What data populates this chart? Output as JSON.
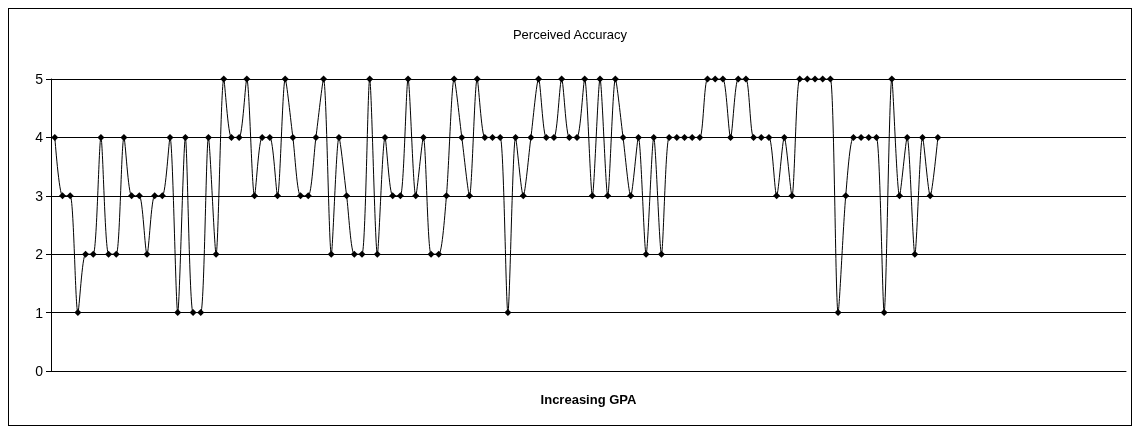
{
  "chart_data": {
    "type": "line",
    "title": "Perceived Accuracy",
    "xlabel": "Increasing GPA",
    "categories": [
      null,
      null,
      null,
      null,
      null,
      null,
      null,
      null,
      null,
      null,
      null,
      null,
      null,
      null,
      null,
      null,
      null,
      null,
      null,
      null,
      null,
      null,
      null,
      null,
      null,
      null,
      null,
      null,
      null,
      null,
      null,
      null,
      null,
      null,
      null,
      null,
      null,
      null,
      null,
      null,
      null,
      null,
      null,
      null,
      null,
      null,
      null,
      null,
      null,
      null,
      null,
      null,
      null,
      null,
      null,
      null,
      null,
      null,
      null,
      null,
      null,
      null,
      null,
      null,
      null,
      null,
      null,
      null,
      null,
      null,
      null,
      null,
      null,
      null,
      null,
      null,
      null,
      null,
      null,
      null,
      null,
      null,
      null,
      null,
      null,
      null,
      null,
      null,
      null,
      null,
      null,
      null,
      null,
      null,
      null,
      null,
      null,
      null,
      null,
      null,
      null,
      null,
      null,
      null,
      null,
      null,
      null,
      null,
      null,
      null,
      null,
      null,
      null,
      null,
      null,
      null,
      null,
      null,
      null,
      null,
      null,
      null,
      null,
      null,
      null,
      null,
      null,
      null,
      null,
      null,
      null,
      null,
      null,
      null,
      null,
      null,
      null,
      null,
      null,
      null
    ],
    "series": [
      {
        "color": "#000000",
        "values": [
          4,
          3,
          3,
          1,
          2,
          2,
          4,
          2,
          2,
          4,
          3,
          3,
          2,
          3,
          3,
          4,
          1,
          4,
          1,
          1,
          4,
          2,
          5,
          4,
          4,
          5,
          3,
          4,
          4,
          3,
          5,
          4,
          3,
          3,
          4,
          5,
          2,
          4,
          3,
          2,
          2,
          5,
          2,
          4,
          3,
          3,
          5,
          3,
          4,
          2,
          2,
          3,
          5,
          4,
          3,
          5,
          4,
          4,
          4,
          1,
          4,
          3,
          4,
          5,
          4,
          4,
          5,
          4,
          4,
          5,
          3,
          5,
          3,
          5,
          4,
          3,
          4,
          2,
          4,
          2,
          4,
          4,
          4,
          4,
          4,
          5,
          5,
          5,
          4,
          5,
          5,
          4,
          4,
          4,
          3,
          4,
          3,
          5,
          5,
          5,
          5,
          5,
          1,
          3,
          4,
          4,
          4,
          4,
          1,
          5,
          3,
          4,
          2,
          4,
          3,
          4,
          null,
          null,
          null,
          null,
          null,
          null,
          null,
          null,
          null,
          null,
          null,
          null,
          null,
          null,
          null,
          null,
          null,
          null,
          null,
          null,
          null,
          null,
          null,
          null
        ]
      }
    ],
    "ylim": [
      0,
      5
    ],
    "yticks": [
      0,
      1,
      2,
      3,
      4,
      5
    ],
    "grid": "y",
    "marker": "diamond",
    "line_style": "solid"
  }
}
